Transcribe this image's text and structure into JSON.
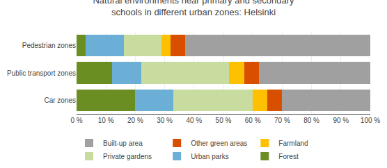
{
  "chart_data": {
    "type": "bar",
    "orientation": "horizontal",
    "stacked": true,
    "title": "Natural environments near primary and secondary\nschools in different urban zones: Helsinki",
    "categories": [
      "Pedestrian zones",
      "Public transport zones",
      "Car zones"
    ],
    "series": [
      {
        "name": "Forest",
        "color": "#6b8e23",
        "values": [
          3,
          12,
          20
        ]
      },
      {
        "name": "Urban parks",
        "color": "#6baed6",
        "values": [
          13,
          10,
          13
        ]
      },
      {
        "name": "Private gardens",
        "color": "#c8dca0",
        "values": [
          13,
          30,
          27
        ]
      },
      {
        "name": "Farmland",
        "color": "#ffc000",
        "values": [
          3,
          5,
          5
        ]
      },
      {
        "name": "Other green areas",
        "color": "#d94f00",
        "values": [
          5,
          5,
          5
        ]
      },
      {
        "name": "Built-up area",
        "color": "#a0a0a0",
        "values": [
          63,
          38,
          30
        ]
      }
    ],
    "xlim": [
      0,
      100
    ],
    "xticks": [
      {
        "value": 0,
        "label": "0 %"
      },
      {
        "value": 10,
        "label": "10 %"
      },
      {
        "value": 20,
        "label": "20 %"
      },
      {
        "value": 30,
        "label": "30 %"
      },
      {
        "value": 40,
        "label": "40 %"
      },
      {
        "value": 50,
        "label": "50 %"
      },
      {
        "value": 60,
        "label": "60 %"
      },
      {
        "value": 70,
        "label": "70 %"
      },
      {
        "value": 80,
        "label": "80 %"
      },
      {
        "value": 90,
        "label": "90 %"
      },
      {
        "value": 100,
        "label": "100 %"
      }
    ],
    "grid": true,
    "legend": "bottom"
  }
}
